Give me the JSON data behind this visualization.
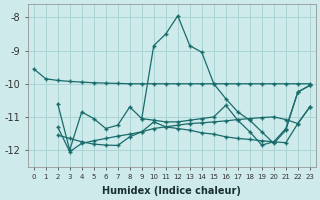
{
  "xlabel": "Humidex (Indice chaleur)",
  "xlim": [
    -0.5,
    23.5
  ],
  "ylim": [
    -12.5,
    -7.6
  ],
  "yticks": [
    -12,
    -11,
    -10,
    -9,
    -8
  ],
  "xticks": [
    0,
    1,
    2,
    3,
    4,
    5,
    6,
    7,
    8,
    9,
    10,
    11,
    12,
    13,
    14,
    15,
    16,
    17,
    18,
    19,
    20,
    21,
    22,
    23
  ],
  "background_color": "#ceeaea",
  "grid_color": "#aad4d4",
  "line_color": "#1a6b6b",
  "line1_x": [
    0,
    1,
    2,
    3,
    4,
    5,
    6,
    7,
    8,
    9,
    10,
    11,
    12,
    13,
    14,
    15,
    16,
    17,
    18,
    19,
    20,
    21,
    22,
    23
  ],
  "line1_y": [
    -9.55,
    -9.85,
    -9.9,
    -9.93,
    -9.95,
    -9.97,
    -9.98,
    -9.99,
    -10.0,
    -10.0,
    -10.0,
    -10.0,
    -10.0,
    -10.0,
    -10.0,
    -10.0,
    -10.0,
    -10.0,
    -10.0,
    -10.0,
    -10.0,
    -10.0,
    -10.0,
    -10.0
  ],
  "line2_x": [
    2,
    3,
    4,
    5,
    6,
    7,
    8,
    9,
    10,
    11,
    12,
    13,
    14,
    15,
    16,
    17,
    18,
    19,
    20,
    21,
    22,
    23
  ],
  "line2_y": [
    -10.6,
    -12.0,
    -10.85,
    -11.05,
    -11.35,
    -11.25,
    -10.7,
    -11.05,
    -11.1,
    -11.15,
    -11.15,
    -11.1,
    -11.05,
    -11.0,
    -10.65,
    -11.1,
    -11.45,
    -11.85,
    -11.75,
    -11.35,
    -10.25,
    -10.05
  ],
  "line3_x": [
    2,
    3,
    4,
    5,
    6,
    7,
    8,
    9,
    10,
    11,
    12,
    13,
    14,
    15,
    16,
    17,
    18,
    19,
    20,
    21,
    22,
    23
  ],
  "line3_y": [
    -11.55,
    -11.65,
    -11.75,
    -11.82,
    -11.85,
    -11.86,
    -11.6,
    -11.45,
    -11.15,
    -11.3,
    -11.35,
    -11.4,
    -11.48,
    -11.52,
    -11.6,
    -11.65,
    -11.68,
    -11.72,
    -11.75,
    -11.78,
    -11.2,
    -10.7
  ],
  "line4_x": [
    2,
    3,
    4,
    5,
    6,
    7,
    8,
    9,
    10,
    11,
    12,
    13,
    14,
    15,
    16,
    17,
    18,
    19,
    20,
    21,
    22,
    23
  ],
  "line4_y": [
    -11.3,
    -12.05,
    -11.8,
    -11.72,
    -11.65,
    -11.58,
    -11.52,
    -11.45,
    -11.35,
    -11.3,
    -11.25,
    -11.2,
    -11.18,
    -11.15,
    -11.12,
    -11.08,
    -11.05,
    -11.02,
    -11.0,
    -11.08,
    -11.2,
    -10.7
  ],
  "line5_x": [
    9,
    10,
    11,
    12,
    13,
    14,
    15,
    16,
    17,
    18,
    19,
    20,
    21,
    22,
    23
  ],
  "line5_y": [
    -11.05,
    -8.85,
    -8.5,
    -7.95,
    -8.85,
    -9.05,
    -10.0,
    -10.45,
    -10.85,
    -11.1,
    -11.45,
    -11.8,
    -11.4,
    -10.25,
    -10.05
  ]
}
